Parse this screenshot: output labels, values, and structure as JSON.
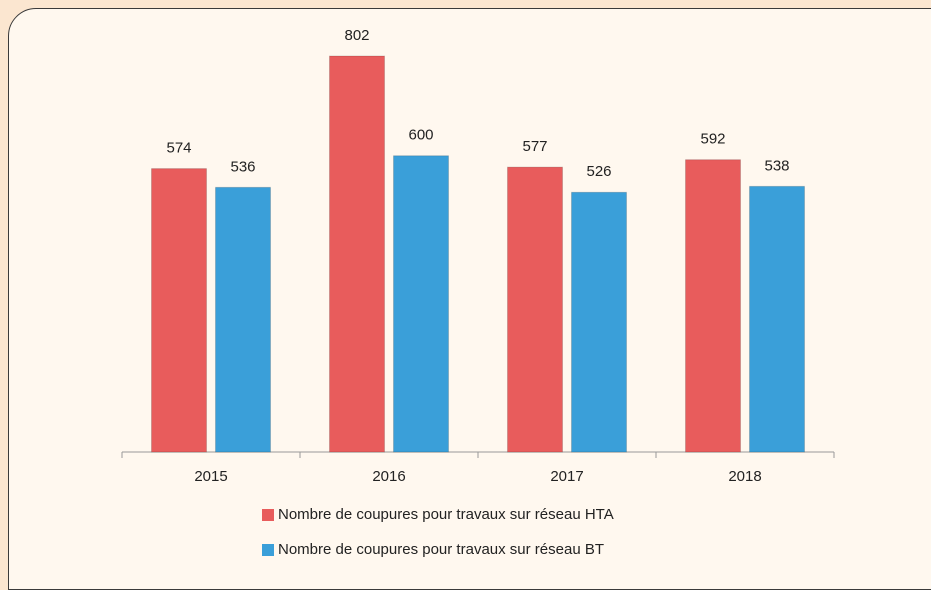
{
  "chart_data": {
    "type": "bar",
    "categories": [
      "2015",
      "2016",
      "2017",
      "2018"
    ],
    "series": [
      {
        "name": "Nombre de coupures pour travaux sur réseau HTA",
        "color": "#e85c5c",
        "values": [
          574,
          802,
          577,
          592
        ]
      },
      {
        "name": "Nombre de coupures pour travaux sur réseau BT",
        "color": "#3a9fd9",
        "values": [
          536,
          600,
          526,
          538
        ]
      }
    ]
  }
}
